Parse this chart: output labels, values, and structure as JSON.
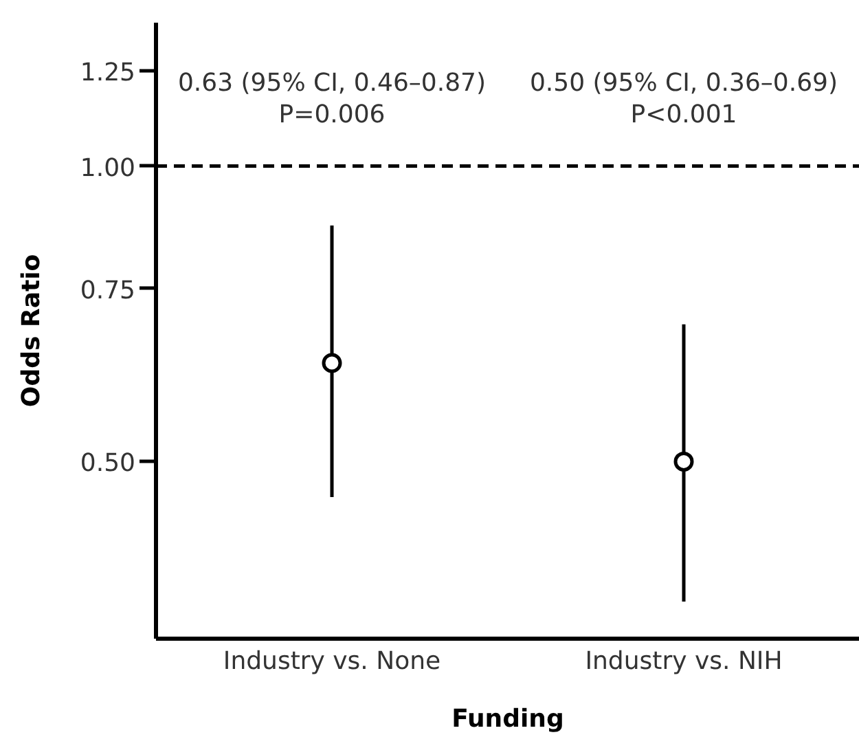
{
  "chart_data": {
    "type": "scatter",
    "xlabel": "Funding",
    "ylabel": "Odds Ratio",
    "categories": [
      "Industry vs. None",
      "Industry vs. NIH"
    ],
    "values": [
      0.63,
      0.5
    ],
    "errors": [
      [
        0.46,
        0.87
      ],
      [
        0.36,
        0.69
      ]
    ],
    "color": "#000000",
    "marker": "circle",
    "log": true,
    "ylim": [
      0.33,
      1.4
    ],
    "yticks": [
      {
        "value": 0.5,
        "label": "0.50"
      },
      {
        "value": 0.75,
        "label": "0.75"
      },
      {
        "value": 1.0,
        "label": "1.00"
      },
      {
        "value": 1.25,
        "label": "1.25"
      }
    ],
    "grid": false,
    "ref_lines": [
      {
        "axis": "y",
        "value": 1.0,
        "color": "#000000",
        "line_style": "dashed"
      }
    ],
    "annotations": [
      "0.63 (95% CI, 0.46–0.87)",
      "P=0.006",
      "0.50 (95% CI, 0.36–0.69)",
      "P<0.001"
    ]
  }
}
